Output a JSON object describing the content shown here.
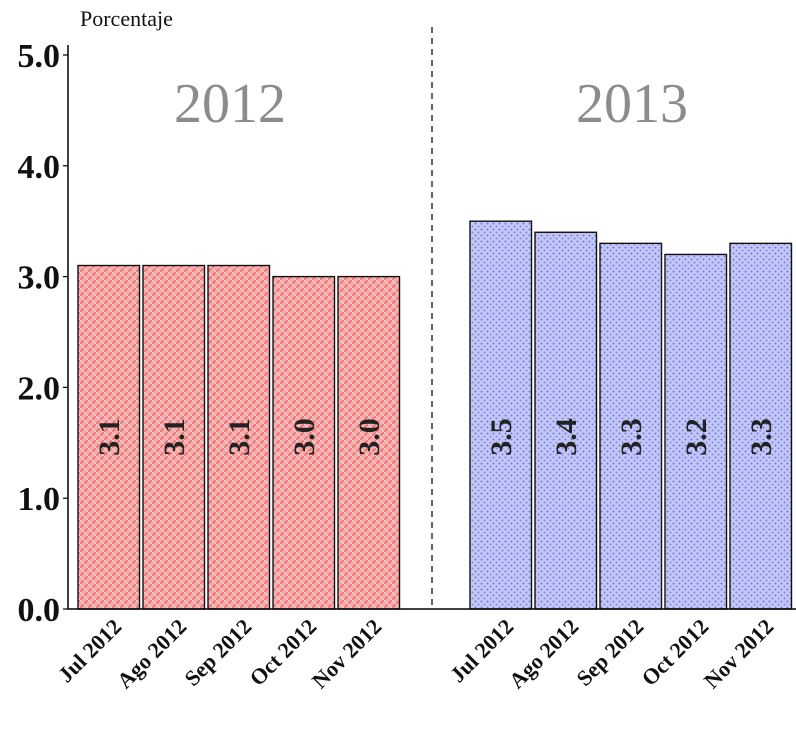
{
  "chart_data": {
    "type": "bar",
    "ylabel": "Porcentaje",
    "ylim": [
      0,
      5
    ],
    "yticks": [
      "0.0",
      "1.0",
      "2.0",
      "3.0",
      "4.0",
      "5.0"
    ],
    "grid": false,
    "groups": [
      {
        "name": "2012",
        "color": "#f08080",
        "categories": [
          "Jul 2012",
          "Ago 2012",
          "Sep 2012",
          "Oct 2012",
          "Nov 2012"
        ],
        "values": [
          3.1,
          3.1,
          3.1,
          3.0,
          3.0
        ],
        "labels": [
          "3.1",
          "3.1",
          "3.1",
          "3.0",
          "3.0"
        ]
      },
      {
        "name": "2013",
        "color": "#a9b0f0",
        "categories": [
          "Jul 2012",
          "Ago 2012",
          "Sep 2012",
          "Oct 2012",
          "Nov 2012"
        ],
        "values": [
          3.5,
          3.4,
          3.3,
          3.2,
          3.3
        ],
        "labels": [
          "3.5",
          "3.4",
          "3.3",
          "3.2",
          "3.3"
        ]
      }
    ]
  }
}
